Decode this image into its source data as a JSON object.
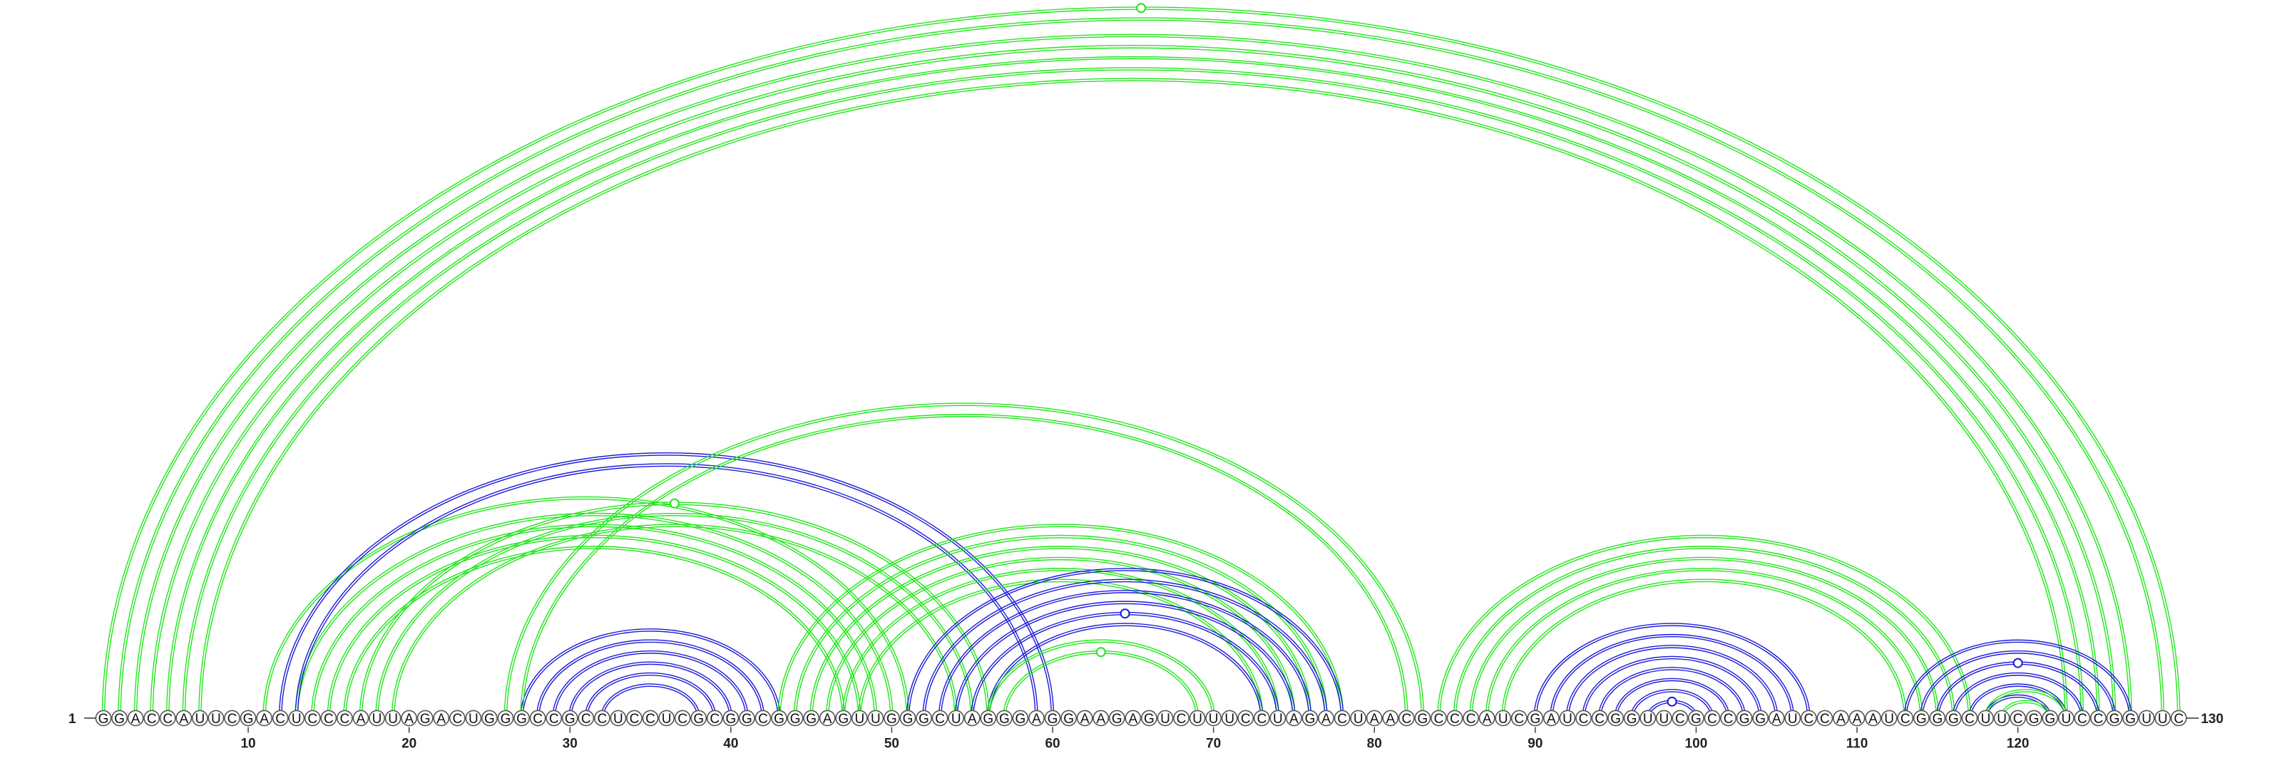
{
  "diagram": {
    "type": "arc-diagram",
    "sequence": "GGACCAUUCGACUCCCAUUAGACUGGGCCGCCUCCUCGCGGCGGGAGUUGGGCUAGGGAGGAAGAGUCUUUCCUAGACUAACGCCCAUCGAUCCGGUUCGCCGGAUCCAAAUCGGGCUUCGGUCCGGUUC",
    "start_label": "1",
    "end_label": "130",
    "tick_labels": [
      "10",
      "20",
      "30",
      "40",
      "50",
      "60",
      "70",
      "80",
      "90",
      "100",
      "110",
      "120"
    ],
    "tick_positions": [
      10,
      20,
      30,
      40,
      50,
      60,
      70,
      80,
      90,
      100,
      110,
      120
    ],
    "colors": {
      "green": "#22e61b",
      "blue": "#1b1bd9",
      "nucleotide_border": "#555555"
    },
    "arc_groups": [
      {
        "color": "green",
        "style": "double",
        "pairs": [
          [
            1,
            130
          ],
          [
            2,
            129
          ]
        ],
        "marker_pair": [
          1,
          130
        ]
      },
      {
        "color": "green",
        "style": "double",
        "pairs": [
          [
            3,
            127
          ],
          [
            4,
            126
          ],
          [
            5,
            125
          ],
          [
            6,
            124
          ],
          [
            7,
            123
          ]
        ]
      },
      {
        "color": "green",
        "style": "double",
        "pairs": [
          [
            11,
            51
          ],
          [
            13,
            50
          ],
          [
            14,
            49
          ],
          [
            15,
            48
          ],
          [
            16,
            47
          ]
        ]
      },
      {
        "color": "green",
        "style": "double",
        "pairs": [
          [
            17,
            56
          ],
          [
            18,
            55
          ],
          [
            19,
            54
          ]
        ],
        "marker_pair": [
          17,
          56
        ]
      },
      {
        "color": "blue",
        "style": "double",
        "pairs": [
          [
            12,
            60
          ],
          [
            13,
            59
          ]
        ]
      },
      {
        "color": "blue",
        "style": "double",
        "pairs": [
          [
            27,
            43
          ],
          [
            28,
            42
          ],
          [
            29,
            41
          ],
          [
            30,
            40
          ],
          [
            31,
            39
          ],
          [
            32,
            38
          ]
        ]
      },
      {
        "color": "green",
        "style": "double",
        "pairs": [
          [
            26,
            83
          ],
          [
            27,
            82
          ]
        ]
      },
      {
        "color": "green",
        "style": "double",
        "pairs": [
          [
            43,
            78
          ],
          [
            44,
            77
          ],
          [
            45,
            76
          ],
          [
            46,
            75
          ],
          [
            47,
            74
          ],
          [
            48,
            73
          ]
        ]
      },
      {
        "color": "blue",
        "style": "double",
        "pairs": [
          [
            51,
            78
          ],
          [
            52,
            77
          ],
          [
            53,
            76
          ],
          [
            54,
            75
          ],
          [
            55,
            74
          ],
          [
            56,
            73
          ]
        ],
        "marker_pair": [
          55,
          74
        ]
      },
      {
        "color": "green",
        "style": "double",
        "pairs": [
          [
            56,
            70
          ],
          [
            57,
            69
          ]
        ],
        "marker_pair": [
          57,
          69
        ]
      },
      {
        "color": "green",
        "style": "double",
        "pairs": [
          [
            84,
            117
          ],
          [
            85,
            116
          ],
          [
            86,
            115
          ],
          [
            87,
            114
          ],
          [
            88,
            113
          ]
        ]
      },
      {
        "color": "blue",
        "style": "double",
        "pairs": [
          [
            90,
            107
          ],
          [
            91,
            106
          ],
          [
            92,
            105
          ],
          [
            93,
            104
          ],
          [
            94,
            103
          ],
          [
            95,
            102
          ],
          [
            96,
            101
          ],
          [
            97,
            100
          ]
        ],
        "marker_pair": [
          97,
          100
        ]
      },
      {
        "color": "blue",
        "style": "double",
        "pairs": [
          [
            113,
            127
          ],
          [
            114,
            126
          ],
          [
            115,
            125
          ],
          [
            116,
            124
          ],
          [
            117,
            123
          ],
          [
            118,
            122
          ]
        ],
        "marker_pair": [
          115,
          125
        ]
      },
      {
        "color": "green",
        "style": "double",
        "pairs": [
          [
            118,
            123
          ],
          [
            119,
            122
          ]
        ]
      }
    ]
  }
}
